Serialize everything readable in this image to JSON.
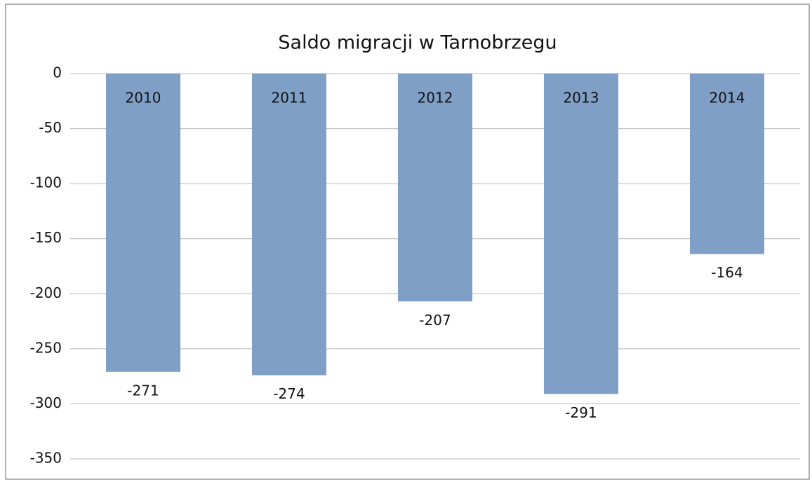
{
  "chart_data": {
    "type": "bar",
    "title": "Saldo migracji w Tarnobrzegu",
    "categories": [
      "2010",
      "2011",
      "2012",
      "2013",
      "2014"
    ],
    "values": [
      -271,
      -274,
      -207,
      -291,
      -164
    ],
    "color": "#7f9fc6",
    "ylim": [
      -350,
      0
    ],
    "yticks": [
      0,
      -50,
      -100,
      -150,
      -200,
      -250,
      -300,
      -350
    ],
    "grid": true
  }
}
